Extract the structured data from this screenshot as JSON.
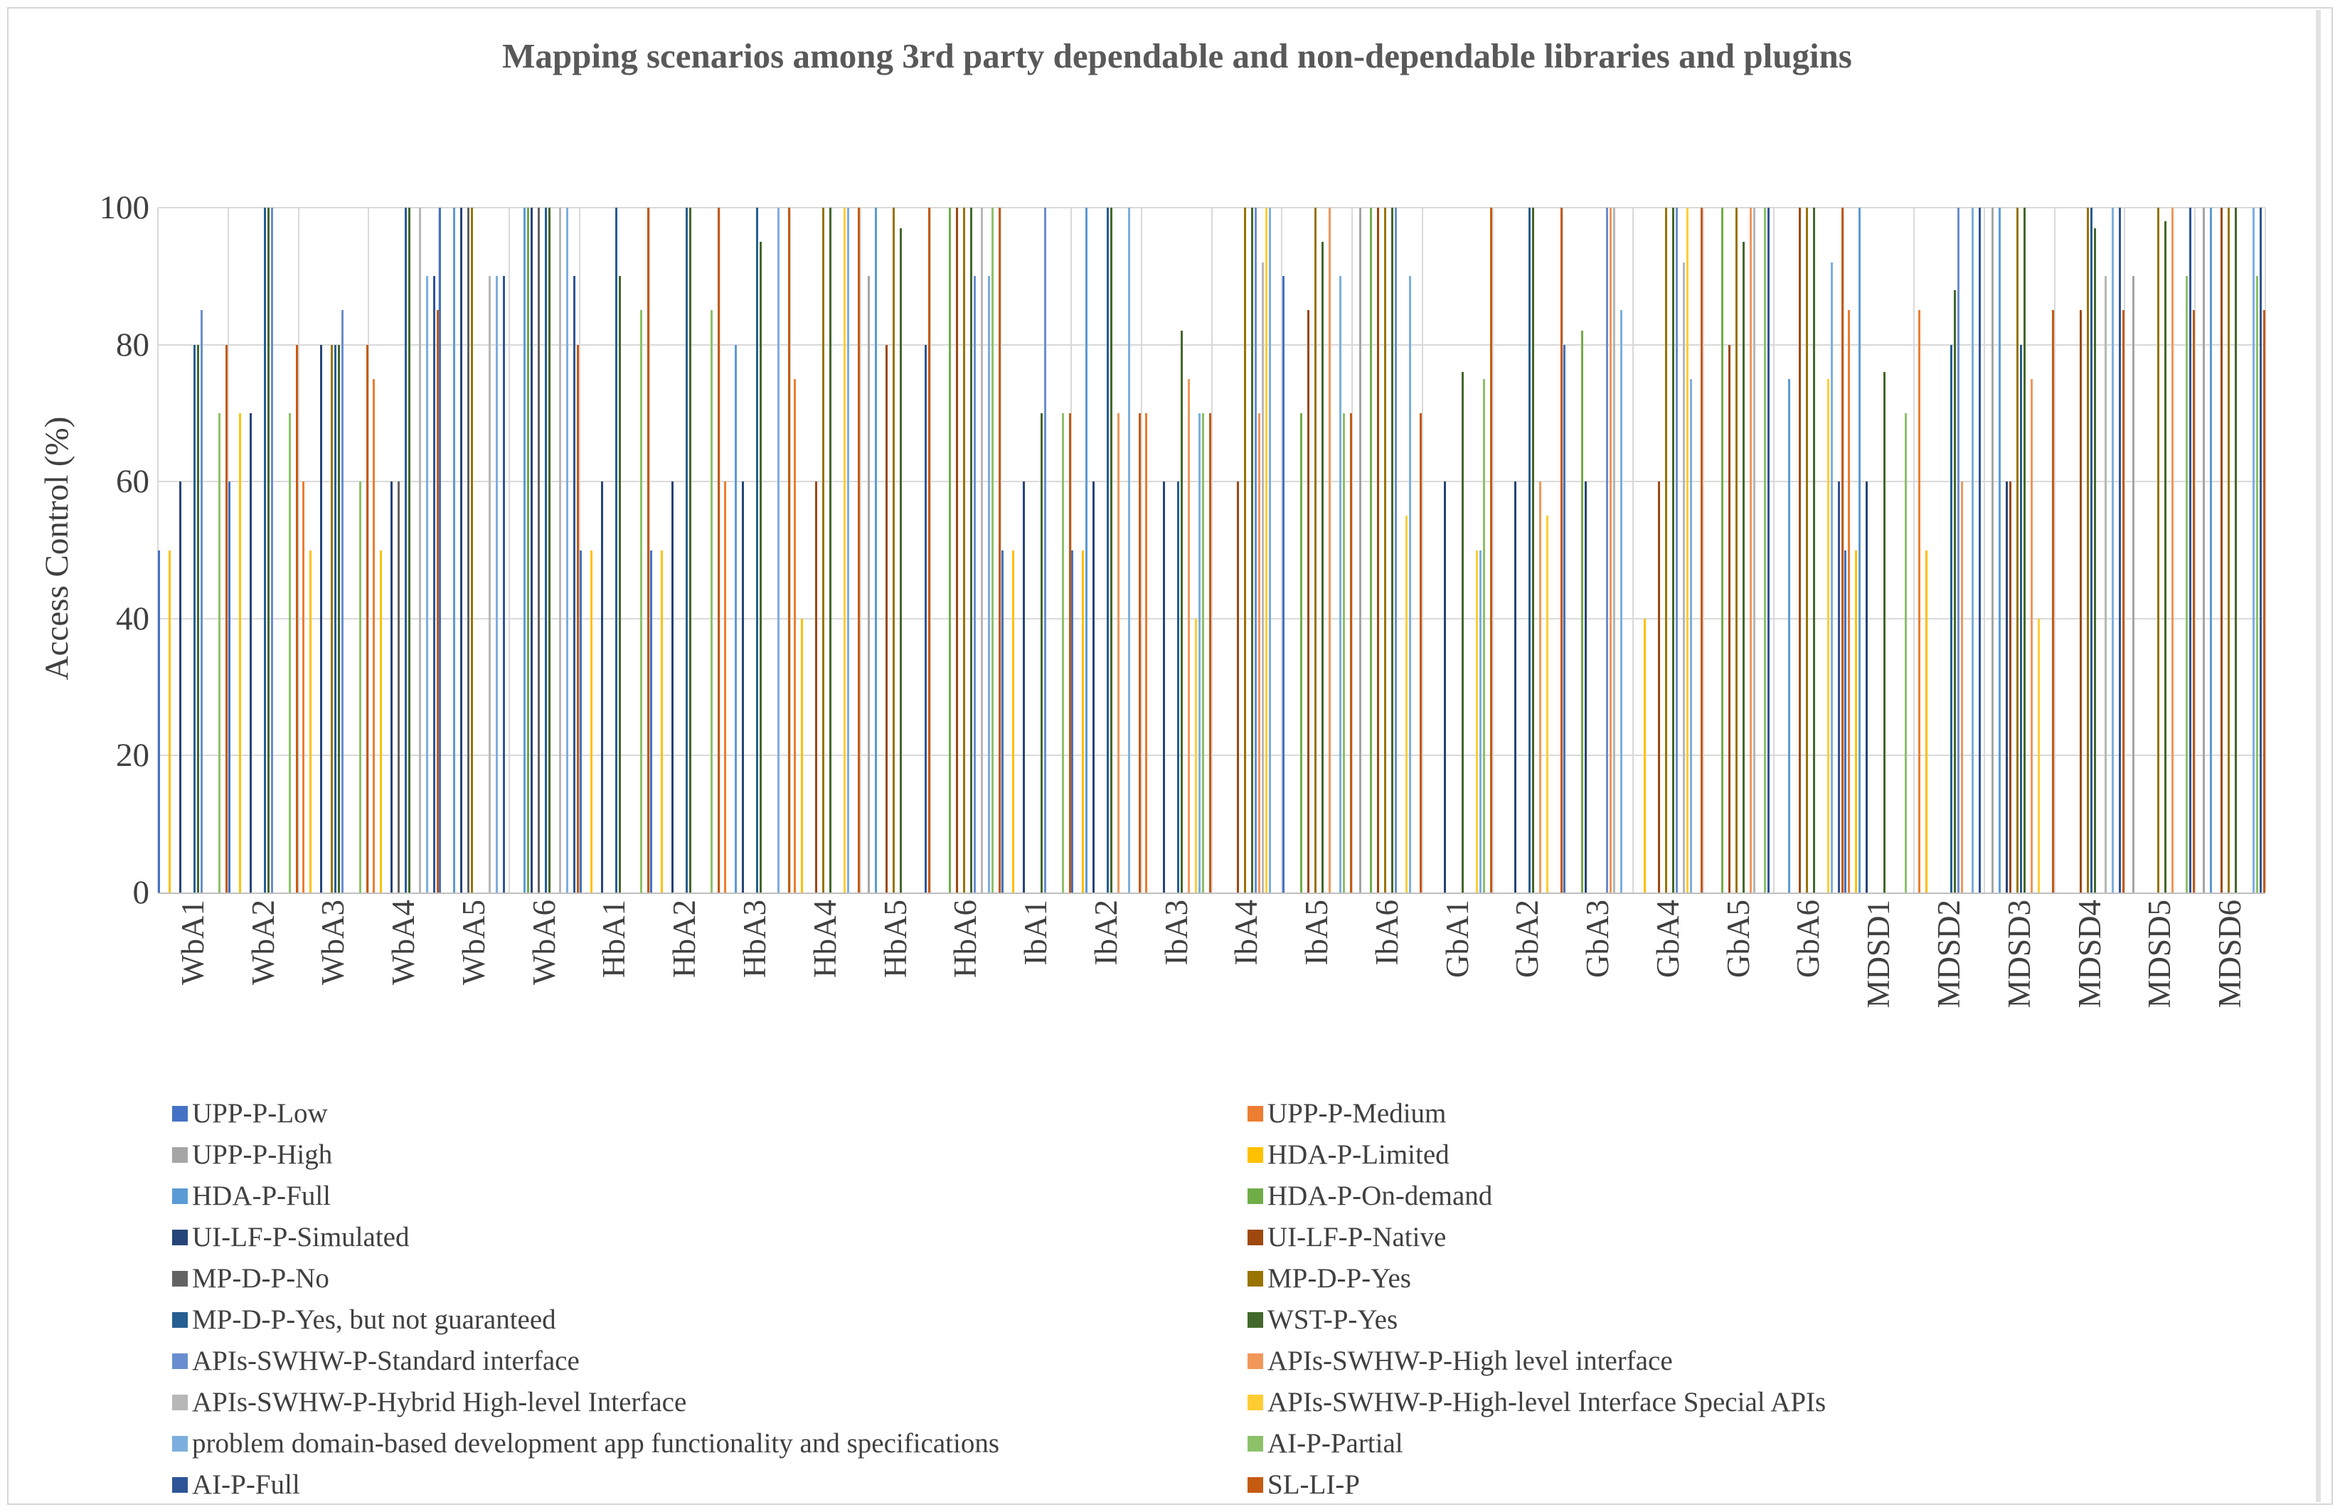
{
  "chart_data": {
    "type": "bar",
    "title": "Mapping scenarios among 3rd party dependable and non-dependable libraries and plugins",
    "xlabel": "",
    "ylabel": "Access Control (%)",
    "ylim": [
      0,
      100
    ],
    "yticks": [
      0,
      20,
      40,
      60,
      80,
      100
    ],
    "grid": true,
    "legend_position": "bottom, two columns, row-major order",
    "categories": [
      "WbA1",
      "WbA2",
      "WbA3",
      "WbA4",
      "WbA5",
      "WbA6",
      "HbA1",
      "HbA2",
      "HbA3",
      "HbA4",
      "HbA5",
      "HbA6",
      "IbA1",
      "IbA2",
      "IbA3",
      "IbA4",
      "IbA5",
      "IbA6",
      "GbA1",
      "GbA2",
      "GbA3",
      "GbA4",
      "GbA5",
      "GbA6",
      "MDSD1",
      "MDSD2",
      "MDSD3",
      "MDSD4",
      "MDSD5",
      "MDSD6"
    ],
    "series": [
      {
        "name": "UPP-P-Low",
        "color": "#4472C4"
      },
      {
        "name": "UPP-P-Medium",
        "color": "#ED7D31"
      },
      {
        "name": "UPP-P-High",
        "color": "#A5A5A5"
      },
      {
        "name": "HDA-P-Limited",
        "color": "#FFC000"
      },
      {
        "name": "HDA-P-Full",
        "color": "#5B9BD5"
      },
      {
        "name": "HDA-P-On-demand",
        "color": "#70AD47"
      },
      {
        "name": "UI-LF-P-Simulated",
        "color": "#264478"
      },
      {
        "name": "UI-LF-P-Native",
        "color": "#9E480E"
      },
      {
        "name": "MP-D-P-No",
        "color": "#636363"
      },
      {
        "name": "MP-D-P-Yes",
        "color": "#997300"
      },
      {
        "name": "MP-D-P-Yes, but not guaranteed",
        "color": "#255E91"
      },
      {
        "name": "WST-P-Yes",
        "color": "#43682B"
      },
      {
        "name": "APIs-SWHW-P-Standard interface",
        "color": "#698ED0"
      },
      {
        "name": "APIs-SWHW-P-High level interface",
        "color": "#F1975A"
      },
      {
        "name": "APIs-SWHW-P-Hybrid High-level Interface",
        "color": "#B7B7B7"
      },
      {
        "name": "APIs-SWHW-P-High-level Interface Special APIs",
        "color": "#FFCD33"
      },
      {
        "name": "problem domain-based development app functionality and specifications",
        "color": "#7CAFDD"
      },
      {
        "name": "AI-P-Partial",
        "color": "#8CC168"
      },
      {
        "name": "AI-P-Full",
        "color": "#2F5597"
      },
      {
        "name": "SL-LI-P",
        "color": "#C55A11"
      }
    ],
    "values_by_category": [
      [
        50,
        0,
        0,
        50,
        0,
        0,
        60,
        0,
        0,
        0,
        80,
        80,
        85,
        0,
        0,
        0,
        0,
        70,
        0,
        80
      ],
      [
        60,
        0,
        0,
        70,
        0,
        0,
        70,
        0,
        0,
        0,
        100,
        100,
        100,
        0,
        0,
        0,
        0,
        70,
        0,
        80
      ],
      [
        0,
        60,
        0,
        50,
        0,
        0,
        80,
        0,
        0,
        80,
        80,
        80,
        85,
        0,
        0,
        0,
        0,
        60,
        0,
        80
      ],
      [
        0,
        75,
        0,
        50,
        0,
        0,
        60,
        0,
        60,
        0,
        100,
        100,
        0,
        0,
        100,
        0,
        90,
        0,
        90,
        85
      ],
      [
        100,
        0,
        0,
        0,
        100,
        0,
        100,
        0,
        100,
        100,
        0,
        0,
        0,
        0,
        90,
        0,
        90,
        0,
        90,
        0
      ],
      [
        0,
        0,
        0,
        0,
        100,
        100,
        100,
        0,
        100,
        0,
        100,
        100,
        0,
        0,
        100,
        0,
        100,
        0,
        90,
        80
      ],
      [
        50,
        0,
        0,
        50,
        0,
        0,
        60,
        0,
        0,
        0,
        100,
        90,
        0,
        0,
        0,
        0,
        0,
        85,
        0,
        100
      ],
      [
        50,
        0,
        0,
        50,
        0,
        0,
        60,
        0,
        0,
        0,
        100,
        100,
        0,
        0,
        0,
        0,
        0,
        85,
        0,
        100
      ],
      [
        0,
        60,
        0,
        0,
        80,
        0,
        60,
        0,
        0,
        0,
        100,
        95,
        0,
        0,
        0,
        0,
        100,
        0,
        0,
        100
      ],
      [
        0,
        75,
        0,
        40,
        0,
        0,
        0,
        60,
        0,
        100,
        0,
        100,
        0,
        0,
        0,
        100,
        100,
        0,
        0,
        100
      ],
      [
        0,
        0,
        90,
        0,
        100,
        0,
        0,
        80,
        0,
        100,
        0,
        97,
        0,
        0,
        0,
        0,
        0,
        0,
        80,
        100
      ],
      [
        0,
        0,
        0,
        0,
        0,
        100,
        0,
        100,
        0,
        100,
        0,
        100,
        90,
        0,
        100,
        0,
        90,
        100,
        0,
        100
      ],
      [
        50,
        0,
        0,
        50,
        0,
        0,
        60,
        0,
        0,
        0,
        0,
        70,
        100,
        0,
        0,
        0,
        0,
        70,
        0,
        70
      ],
      [
        50,
        0,
        0,
        50,
        100,
        0,
        60,
        0,
        0,
        0,
        100,
        100,
        0,
        70,
        0,
        0,
        100,
        0,
        0,
        70
      ],
      [
        0,
        70,
        0,
        0,
        0,
        0,
        60,
        0,
        0,
        0,
        60,
        82,
        0,
        75,
        0,
        40,
        70,
        70,
        0,
        70
      ],
      [
        0,
        0,
        0,
        0,
        0,
        0,
        0,
        60,
        0,
        100,
        0,
        100,
        100,
        70,
        92,
        100,
        100,
        0,
        0,
        0
      ],
      [
        90,
        0,
        0,
        0,
        0,
        70,
        0,
        85,
        0,
        100,
        0,
        95,
        0,
        100,
        0,
        0,
        90,
        70,
        0,
        70
      ],
      [
        0,
        0,
        100,
        0,
        0,
        100,
        0,
        100,
        0,
        100,
        0,
        100,
        100,
        0,
        0,
        55,
        90,
        0,
        0,
        70
      ],
      [
        0,
        0,
        0,
        0,
        0,
        0,
        60,
        0,
        0,
        0,
        0,
        76,
        0,
        0,
        0,
        50,
        50,
        75,
        0,
        100
      ],
      [
        0,
        0,
        0,
        0,
        0,
        0,
        60,
        0,
        0,
        0,
        100,
        100,
        0,
        60,
        0,
        55,
        0,
        0,
        0,
        100
      ],
      [
        80,
        0,
        0,
        0,
        0,
        82,
        60,
        0,
        0,
        0,
        0,
        0,
        100,
        100,
        100,
        0,
        85,
        0,
        0,
        0
      ],
      [
        0,
        0,
        0,
        40,
        0,
        0,
        0,
        60,
        0,
        100,
        0,
        100,
        100,
        0,
        92,
        100,
        75,
        0,
        0,
        100
      ],
      [
        0,
        0,
        0,
        0,
        0,
        100,
        0,
        80,
        0,
        100,
        0,
        95,
        0,
        100,
        100,
        0,
        0,
        100,
        100,
        0
      ],
      [
        0,
        0,
        0,
        0,
        75,
        0,
        0,
        100,
        0,
        100,
        0,
        100,
        0,
        0,
        0,
        75,
        92,
        0,
        60,
        100
      ],
      [
        50,
        85,
        0,
        50,
        100,
        0,
        60,
        0,
        0,
        0,
        0,
        76,
        0,
        0,
        0,
        0,
        0,
        70,
        0,
        0
      ],
      [
        0,
        85,
        0,
        50,
        0,
        0,
        0,
        0,
        0,
        0,
        80,
        88,
        100,
        60,
        0,
        0,
        100,
        0,
        100,
        0
      ],
      [
        0,
        0,
        100,
        0,
        100,
        0,
        60,
        60,
        0,
        100,
        80,
        100,
        0,
        75,
        0,
        40,
        0,
        0,
        0,
        85
      ],
      [
        0,
        0,
        0,
        0,
        0,
        0,
        0,
        85,
        0,
        100,
        100,
        97,
        0,
        0,
        90,
        0,
        100,
        0,
        100,
        85
      ],
      [
        0,
        0,
        90,
        0,
        0,
        0,
        0,
        0,
        0,
        100,
        0,
        98,
        0,
        100,
        0,
        0,
        0,
        90,
        100,
        85
      ],
      [
        0,
        0,
        100,
        0,
        100,
        0,
        0,
        100,
        0,
        100,
        0,
        100,
        0,
        0,
        0,
        0,
        100,
        90,
        100,
        85
      ]
    ],
    "styles": {
      "gridline_color": "#d9d9d9",
      "axis_color": "#bfbfbf",
      "text_color": "#404040",
      "title_color": "#595959",
      "background": "#ffffff"
    }
  },
  "layout_note": "clustered thin-bar chart, 30 categories x 20 series, legend in two columns below"
}
